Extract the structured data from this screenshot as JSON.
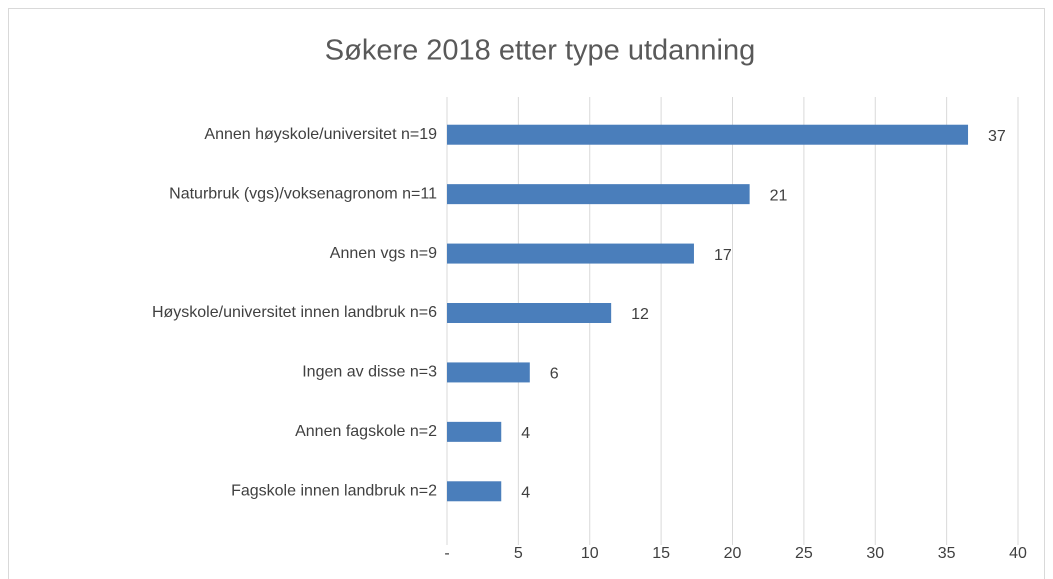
{
  "chart_data": {
    "type": "bar",
    "orientation": "horizontal",
    "title": "Søkere 2018 etter type utdanning",
    "categories": [
      "Annen høyskole/universitet n=19",
      "Naturbruk (vgs)/voksenagronom n=11",
      "Annen vgs n=9",
      "Høyskole/universitet innen landbruk n=6",
      "Ingen av disse n=3",
      "Annen fagskole n=2",
      "Fagskole innen landbruk n=2"
    ],
    "values": [
      36.5,
      21.2,
      17.3,
      11.5,
      5.8,
      3.8,
      3.8
    ],
    "value_labels": [
      "37",
      "21",
      "17",
      "12",
      "6",
      "4",
      "4"
    ],
    "color": "#4a7ebb",
    "xlim": [
      0,
      40
    ],
    "xticks": [
      {
        "value": 0,
        "label": "-"
      },
      5,
      10,
      15,
      20,
      25,
      30,
      35,
      40
    ],
    "grid": true
  }
}
